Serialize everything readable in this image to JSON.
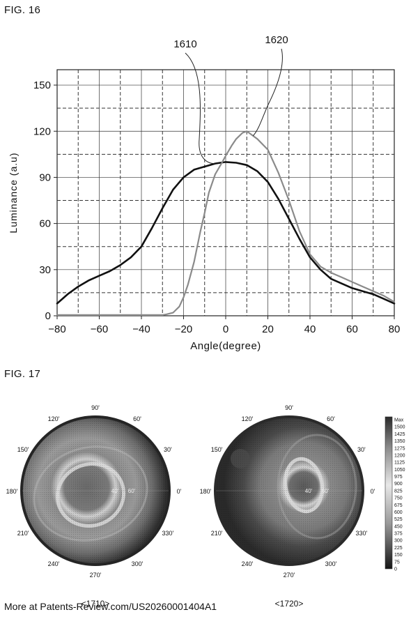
{
  "fig16": {
    "label": "FIG. 16",
    "chart_data": {
      "type": "line",
      "title": "",
      "xlabel": "Angle(degree)",
      "ylabel": "Luminance (a.u)",
      "xlim": [
        -80,
        80
      ],
      "ylim": [
        0,
        160
      ],
      "xticks": [
        -80,
        -60,
        -40,
        -20,
        0,
        20,
        40,
        60,
        80
      ],
      "yticks": [
        0,
        30,
        60,
        90,
        120,
        150
      ],
      "grid": true,
      "series": [
        {
          "name": "1610",
          "color": "#111111",
          "x": [
            -80,
            -75,
            -70,
            -65,
            -60,
            -55,
            -50,
            -45,
            -40,
            -35,
            -30,
            -25,
            -20,
            -15,
            -10,
            -5,
            0,
            5,
            10,
            15,
            20,
            25,
            30,
            35,
            40,
            45,
            50,
            55,
            60,
            65,
            70,
            75,
            80
          ],
          "y": [
            8,
            14,
            19,
            23,
            26,
            29,
            33,
            38,
            45,
            57,
            70,
            82,
            90,
            95,
            97,
            99,
            100,
            99.5,
            98,
            94,
            87,
            76,
            63,
            50,
            38,
            30,
            24,
            21,
            18,
            16,
            14,
            11,
            8
          ]
        },
        {
          "name": "1620",
          "color": "#8a8a8a",
          "x": [
            -80,
            -60,
            -40,
            -30,
            -28,
            -25,
            -22,
            -20,
            -18,
            -15,
            -12,
            -10,
            -8,
            -5,
            -2,
            0,
            3,
            5,
            8,
            10,
            13,
            15,
            20,
            25,
            30,
            35,
            40,
            45,
            50,
            55,
            60,
            65,
            70,
            75,
            80
          ],
          "y": [
            0.5,
            0.5,
            0.5,
            0.5,
            1,
            2,
            6,
            12,
            20,
            35,
            55,
            67,
            80,
            92,
            99,
            104,
            111,
            115,
            119,
            120,
            117,
            115,
            108,
            93,
            75,
            55,
            40,
            32,
            28,
            25,
            22,
            19,
            16,
            13,
            9
          ]
        }
      ],
      "annotations": [
        "1610",
        "1620"
      ]
    }
  },
  "fig17": {
    "label": "FIG. 17",
    "plots": [
      {
        "caption": "<1710>",
        "angle_labels": [
          "90'",
          "60'",
          "30'",
          "0'",
          "330'",
          "300'",
          "270'",
          "240'",
          "210'",
          "180'",
          "150'",
          "120'"
        ],
        "inner_labels": [
          "40'",
          "60'"
        ]
      },
      {
        "caption": "<1720>",
        "angle_labels": [
          "90'",
          "60'",
          "30'",
          "0'",
          "330'",
          "300'",
          "270'",
          "240'",
          "210'",
          "180'",
          "150'",
          "120'"
        ],
        "inner_labels": [
          "40'",
          "60'"
        ]
      }
    ],
    "colorbar": {
      "labels": [
        "Max",
        "1500",
        "1425",
        "1350",
        "1275",
        "1200",
        "1125",
        "1050",
        "975",
        "900",
        "825",
        "750",
        "675",
        "600",
        "525",
        "450",
        "375",
        "300",
        "225",
        "150",
        "75",
        "0"
      ]
    }
  },
  "footer": {
    "text": "More at Patents-Review.com/US20260001404A1"
  }
}
